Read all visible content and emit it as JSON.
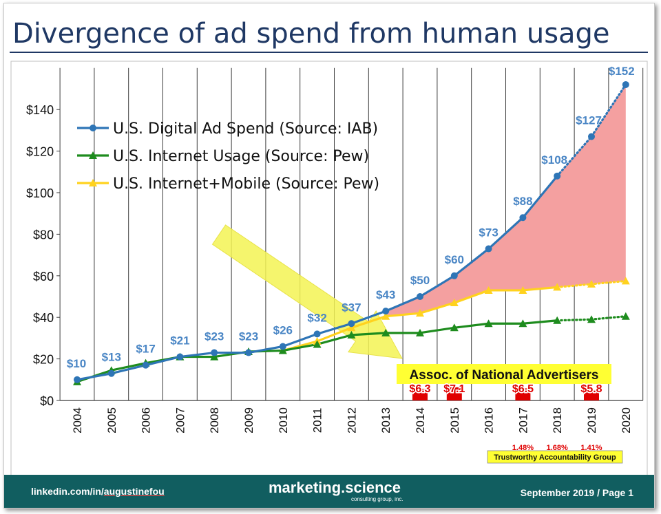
{
  "page": {
    "title": "Divergence of ad spend from human usage"
  },
  "footer": {
    "link_prefix": "linkedin.com/in/",
    "link_user": "augustinefou",
    "brand": "marketing.science",
    "brand_sub": "consulting group, inc.",
    "date_page": "September 2019 / Page 1"
  },
  "colors": {
    "title": "#1f3864",
    "digital_ad_spend": "#2e75b6",
    "internet_usage": "#1e8c1e",
    "internet_mobile": "#ffd21e",
    "divergence_fill": "#f4a0a0",
    "arrow": "#f3f354",
    "ana_bar": "#e00000",
    "footer": "#115e60"
  },
  "chart_data": {
    "type": "line",
    "x": [
      2004,
      2005,
      2006,
      2007,
      2008,
      2009,
      2010,
      2011,
      2012,
      2013,
      2014,
      2015,
      2016,
      2017,
      2018,
      2019,
      2020
    ],
    "ylim": [
      0,
      160
    ],
    "yticks": [
      "$0",
      "$20",
      "$40",
      "$60",
      "$80",
      "$100",
      "$120",
      "$140"
    ],
    "grid": true,
    "legend_position": "top-left",
    "series": [
      {
        "name": "U.S. Digital Ad Spend (Source: IAB)",
        "values": [
          10,
          13,
          17,
          21,
          23,
          23,
          26,
          32,
          37,
          43,
          50,
          60,
          73,
          88,
          108,
          127,
          152
        ],
        "labels": [
          "$10",
          "$13",
          "$17",
          "$21",
          "$23",
          "$23",
          "$26",
          "$32",
          "$37",
          "$43",
          "$50",
          "$60",
          "$73",
          "$88",
          "$108",
          "$127",
          "$152"
        ],
        "projected_from": 2019
      },
      {
        "name": "U.S. Internet Usage (Source: Pew)",
        "values": [
          9,
          14.5,
          18,
          21,
          21,
          23.5,
          24,
          27,
          31.5,
          32.5,
          32.5,
          35,
          37,
          37,
          38.5,
          39,
          40.5
        ],
        "projected_from": 2019
      },
      {
        "name": "U.S. Internet+Mobile (Source: Pew)",
        "x": [
          2010,
          2011,
          2012,
          2013,
          2014,
          2015,
          2016,
          2017,
          2018,
          2019,
          2020
        ],
        "values": [
          24,
          28.5,
          35,
          40.5,
          42,
          47,
          53,
          53,
          54.5,
          56,
          57.5
        ],
        "projected_from": 2019
      }
    ],
    "annotations": {
      "ana_label": "Assoc. of National Advertisers",
      "ana_fraud": [
        {
          "year": 2014,
          "label": "$6.3",
          "value": 6.3
        },
        {
          "year": 2015,
          "label": "$7.1",
          "value": 7.1
        },
        {
          "year": 2017,
          "label": "$6.5",
          "value": 6.5
        },
        {
          "year": 2019,
          "label": "$5.8",
          "value": 5.8
        }
      ],
      "tag_label": "Trustworthy Accountability Group",
      "tag_pcts": [
        {
          "year": 2017,
          "label": "1.48%"
        },
        {
          "year": 2018,
          "label": "1.68%"
        },
        {
          "year": 2019,
          "label": "1.41%"
        }
      ]
    }
  }
}
